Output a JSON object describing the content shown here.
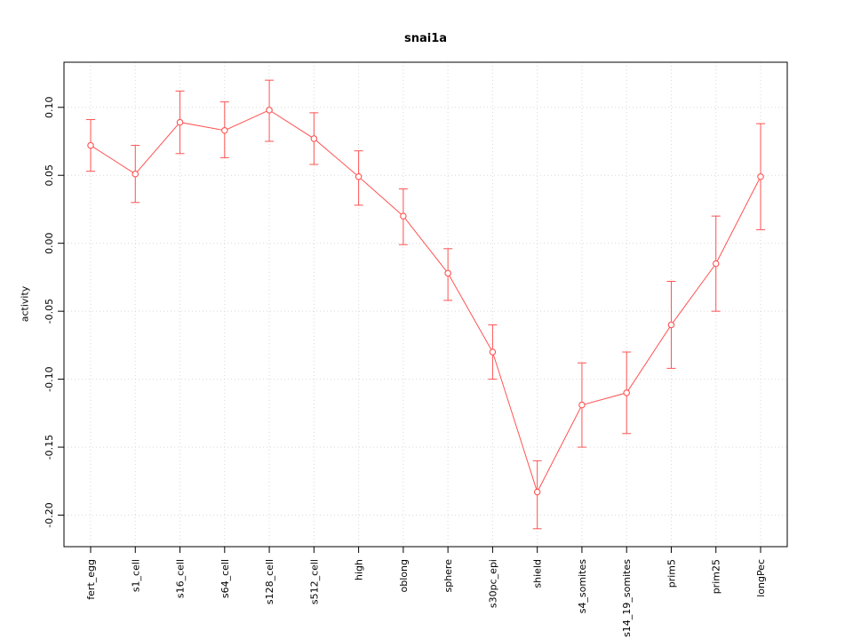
{
  "chart": {
    "title": "snai1a",
    "ylabel": "activity"
  },
  "chart_data": {
    "type": "line",
    "title": "snai1a",
    "xlabel": "",
    "ylabel": "activity",
    "categories": [
      "fert_egg",
      "s1_cell",
      "s16_cell",
      "s64_cell",
      "s128_cell",
      "s512_cell",
      "high",
      "oblong",
      "sphere",
      "s30pc_epi",
      "shield",
      "s4_somites",
      "s14_19_somites",
      "prim5",
      "prim25",
      "longPec"
    ],
    "values": [
      0.072,
      0.051,
      0.089,
      0.083,
      0.098,
      0.077,
      0.049,
      0.02,
      -0.022,
      -0.08,
      -0.183,
      -0.119,
      -0.11,
      -0.06,
      -0.015,
      0.049
    ],
    "error_low": [
      0.053,
      0.03,
      0.066,
      0.063,
      0.075,
      0.058,
      0.028,
      -0.001,
      -0.042,
      -0.1,
      -0.21,
      -0.15,
      -0.14,
      -0.092,
      -0.05,
      0.01
    ],
    "error_high": [
      0.091,
      0.072,
      0.112,
      0.104,
      0.12,
      0.096,
      0.068,
      0.04,
      -0.004,
      -0.06,
      -0.16,
      -0.088,
      -0.08,
      -0.028,
      0.02,
      0.088
    ],
    "yticks": [
      0.1,
      0.05,
      0.0,
      -0.05,
      -0.1,
      -0.15,
      -0.2
    ],
    "ylim": [
      -0.2232,
      0.1332
    ],
    "grid": true,
    "grid_color": "#d9d9d9",
    "line_color": "#ff5252",
    "box_color": "#000000",
    "legend": "none"
  }
}
